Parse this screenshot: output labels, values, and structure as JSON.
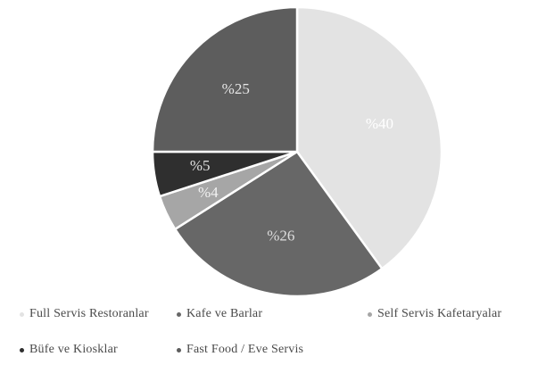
{
  "chart_data": {
    "type": "pie",
    "title": "",
    "slices": [
      {
        "label": "%40",
        "value": 40,
        "color": "#e3e3e3",
        "label_color": "#ffffff"
      },
      {
        "label": "%26",
        "value": 26,
        "color": "#676767",
        "label_color": "#dcdcdc"
      },
      {
        "label": "%4",
        "value": 4,
        "color": "#a6a6a6",
        "label_color": "#f2f2f2"
      },
      {
        "label": "%5",
        "value": 5,
        "color": "#2f2f2f",
        "label_color": "#e0e0e0"
      },
      {
        "label": "%25",
        "value": 25,
        "color": "#5d5d5d",
        "label_color": "#e6e6e6"
      }
    ],
    "legend": {
      "placement": "bottom",
      "entries": [
        {
          "name": "Full Servis Restoranlar",
          "color": "#e3e3e3"
        },
        {
          "name": "Kafe ve Barlar",
          "color": "#676767"
        },
        {
          "name": "Self Servis Kafetaryalar",
          "color": "#a6a6a6"
        },
        {
          "name": "Büfe ve Kiosklar",
          "color": "#2f2f2f"
        },
        {
          "name": "Fast Food / Eve Servis",
          "color": "#5d5d5d"
        }
      ]
    }
  }
}
